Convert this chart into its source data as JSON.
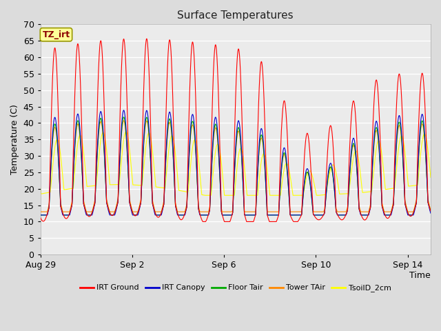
{
  "title": "Surface Temperatures",
  "xlabel": "Time",
  "ylabel": "Temperature (C)",
  "ylim": [
    0,
    70
  ],
  "yticks": [
    0,
    5,
    10,
    15,
    20,
    25,
    30,
    35,
    40,
    45,
    50,
    55,
    60,
    65,
    70
  ],
  "x_tick_labels": [
    "Aug 29",
    "Sep 2",
    "Sep 6",
    "Sep 10",
    "Sep 14"
  ],
  "x_tick_positions": [
    0,
    4,
    8,
    12,
    16
  ],
  "annotation_text": "TZ_irt",
  "annotation_color": "#8B0000",
  "annotation_bg": "#FFFF99",
  "fig_bg_color": "#DCDCDC",
  "plot_bg_color": "#EBEBEB",
  "line_colors": {
    "IRT Ground": "#FF0000",
    "IRT Canopy": "#0000CC",
    "Floor Tair": "#00AA00",
    "Tower TAir": "#FF8800",
    "TsoilD_2cm": "#FFFF00"
  },
  "legend_entries": [
    "IRT Ground",
    "IRT Canopy",
    "Floor Tair",
    "Tower TAir",
    "TsoilD_2cm"
  ],
  "n_days": 17,
  "samples_per_day": 144,
  "grid_color": "#FFFFFF",
  "title_fontsize": 11,
  "label_fontsize": 9,
  "tick_fontsize": 9
}
